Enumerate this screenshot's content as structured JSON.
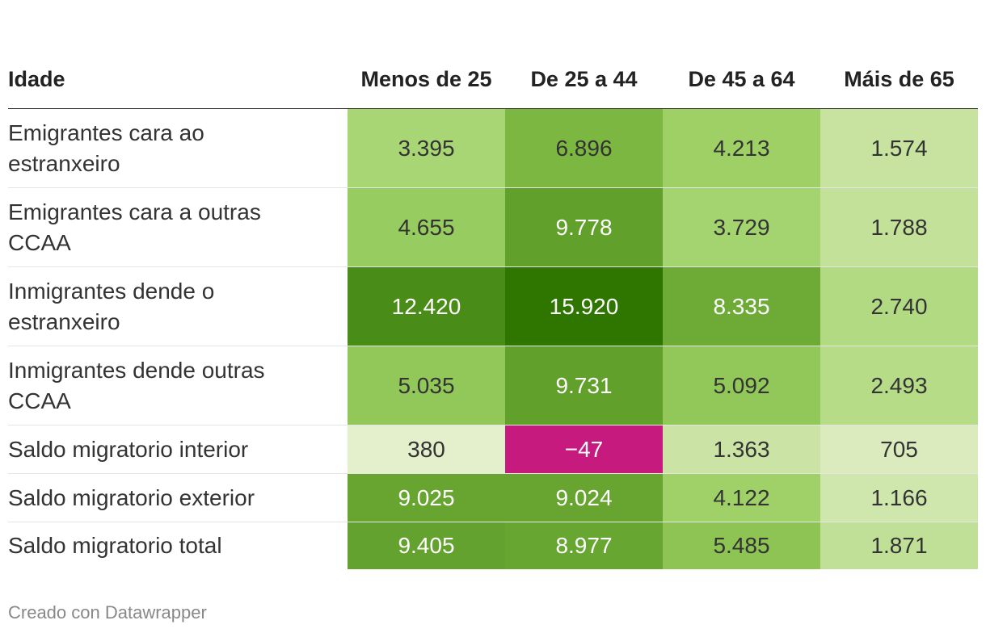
{
  "chart_data": {
    "type": "table",
    "header": {
      "row_label": "Idade",
      "columns": [
        "Menos de 25",
        "De 25 a 44",
        "De 45 a 64",
        "Máis de 65"
      ]
    },
    "rows": [
      {
        "label": "Emigrantes cara ao estranxeiro",
        "values": [
          3395,
          6896,
          4213,
          1574
        ],
        "display": [
          "3.395",
          "6.896",
          "4.213",
          "1.574"
        ]
      },
      {
        "label": "Emigrantes cara a outras CCAA",
        "values": [
          4655,
          9778,
          3729,
          1788
        ],
        "display": [
          "4.655",
          "9.778",
          "3.729",
          "1.788"
        ]
      },
      {
        "label": "Inmigrantes dende o estranxeiro",
        "values": [
          12420,
          15920,
          8335,
          2740
        ],
        "display": [
          "12.420",
          "15.920",
          "8.335",
          "2.740"
        ]
      },
      {
        "label": "Inmigrantes dende outras CCAA",
        "values": [
          5035,
          9731,
          5092,
          2493
        ],
        "display": [
          "5.035",
          "9.731",
          "5.092",
          "2.493"
        ]
      },
      {
        "label": "Saldo migratorio interior",
        "values": [
          380,
          -47,
          1363,
          705
        ],
        "display": [
          "380",
          "−47",
          "1.363",
          "705"
        ]
      },
      {
        "label": "Saldo migratorio exterior",
        "values": [
          9025,
          9024,
          4122,
          1166
        ],
        "display": [
          "9.025",
          "9.024",
          "4.122",
          "1.166"
        ]
      },
      {
        "label": "Saldo migratorio total",
        "values": [
          9405,
          8977,
          5485,
          1871
        ],
        "display": [
          "9.405",
          "8.977",
          "5.485",
          "1.871"
        ]
      }
    ],
    "color_scale": {
      "negative": "#c71a7e",
      "positive_stops": [
        "#f5f5e6",
        "#e3efc9",
        "#c3e19a",
        "#a1d36a",
        "#7ab640",
        "#559622",
        "#2f7600"
      ]
    }
  },
  "footer": {
    "credit": "Creado con Datawrapper"
  }
}
